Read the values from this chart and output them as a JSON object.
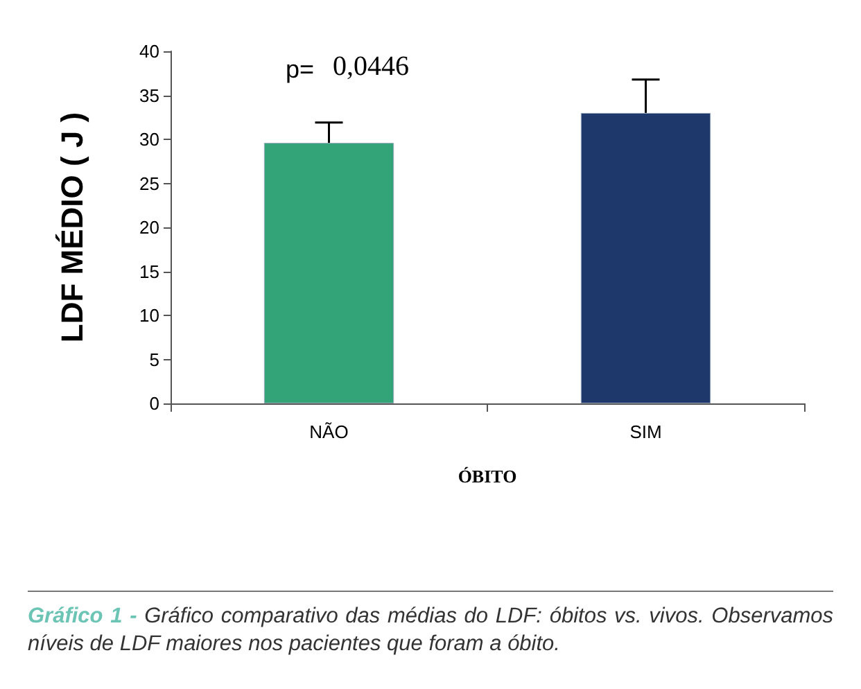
{
  "chart_data": {
    "type": "bar",
    "xlabel": "ÓBITO",
    "ylabel": "LDF MÉDIO ( J )",
    "categories": [
      "NÃO",
      "SIM"
    ],
    "values": [
      29.6,
      33.0
    ],
    "colors": [
      "#33a378",
      "#1f386b"
    ],
    "errors": [
      [
        29.6,
        31.9
      ],
      [
        33.0,
        36.8
      ]
    ],
    "ylim": [
      0,
      40
    ],
    "yticks": [
      0,
      5,
      10,
      15,
      20,
      25,
      30,
      35,
      40
    ],
    "grid": false,
    "annotations": [
      "p= 0,0446",
      "Gráfico 1 - Gráfico comparativo das médias do LDF: óbitos vs. vivos. Observamos níveis de LDF maiores nos pacientes que foram a óbito."
    ]
  }
}
